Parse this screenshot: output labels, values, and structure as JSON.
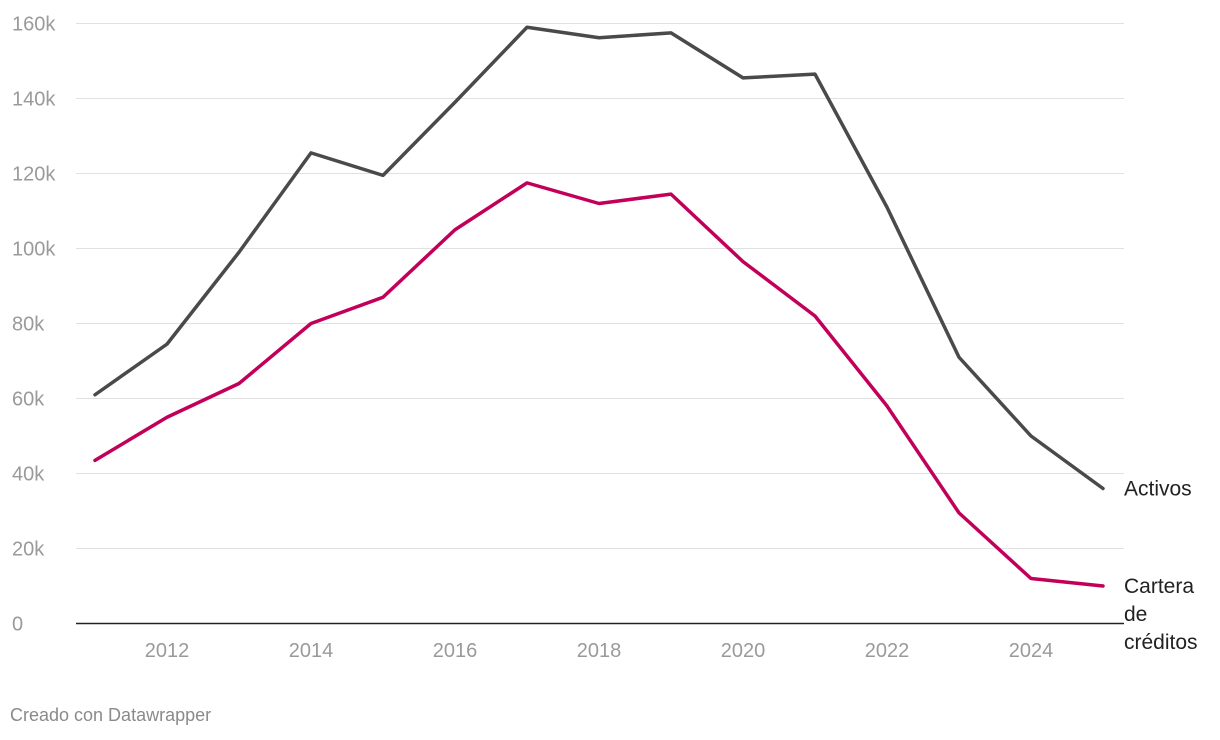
{
  "chart_data": {
    "type": "line",
    "title": "",
    "xlabel": "",
    "ylabel": "",
    "x": [
      2011,
      2012,
      2013,
      2014,
      2015,
      2016,
      2017,
      2018,
      2019,
      2020,
      2021,
      2022,
      2023,
      2024,
      2025
    ],
    "x_ticks": [
      "2012",
      "2014",
      "2016",
      "2018",
      "2020",
      "2022",
      "2024"
    ],
    "y_ticks": [
      "0",
      "20k",
      "40k",
      "60k",
      "80k",
      "100k",
      "120k",
      "140k",
      "160k"
    ],
    "ylim": [
      0,
      160000
    ],
    "grid": true,
    "legend": "direct labels at line ends",
    "series": [
      {
        "name": "Activos",
        "label_lines": [
          "Activos"
        ],
        "color": "#4a4a4a",
        "values": [
          61000,
          74500,
          99000,
          125500,
          119500,
          139000,
          159000,
          156200,
          157500,
          145500,
          146500,
          111000,
          71000,
          50000,
          36000
        ]
      },
      {
        "name": "Cartera de créditos",
        "label_lines": [
          "Cartera",
          "de",
          "créditos"
        ],
        "color": "#c2005a",
        "values": [
          43500,
          55000,
          64000,
          80000,
          87000,
          105000,
          117500,
          112000,
          114500,
          96500,
          82000,
          58000,
          29500,
          12000,
          10000
        ]
      }
    ]
  },
  "footer": {
    "credit": "Creado con Datawrapper"
  }
}
